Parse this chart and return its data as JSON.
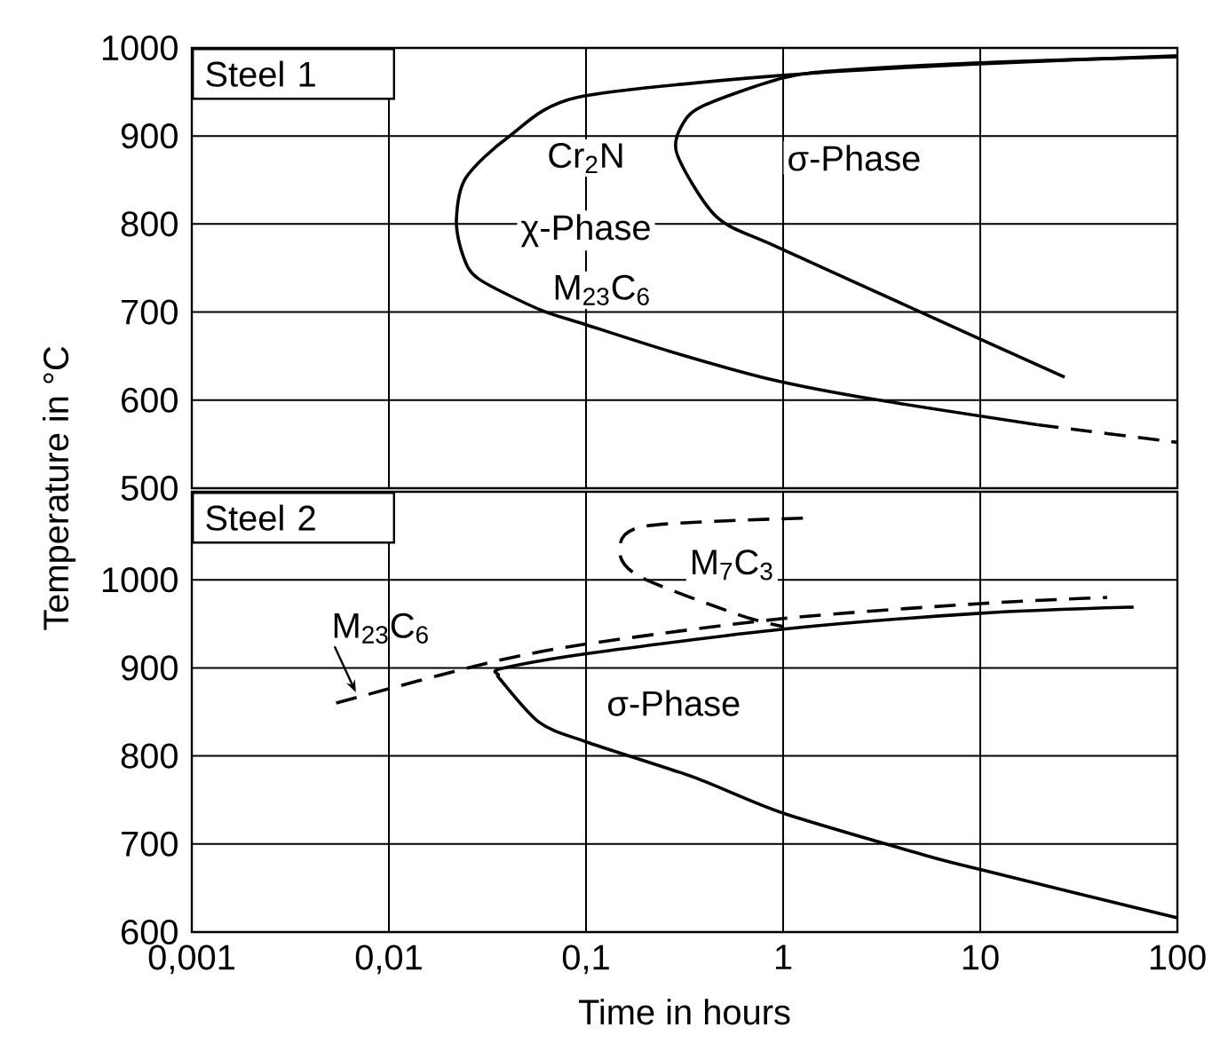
{
  "chart_data": [
    {
      "type": "line",
      "ylabel": "Temperature in °C",
      "log": "x",
      "grid": true,
      "tick_labels": "y",
      "xlim": [
        0.001,
        100
      ],
      "xticks": [
        0.001,
        0.01,
        0.1,
        1,
        10,
        100
      ],
      "ylim": [
        500,
        1000
      ],
      "yticks": [
        500,
        600,
        700,
        800,
        900,
        1000
      ],
      "series": [
        {
          "color": "#000000",
          "line_style": "solid",
          "x": [
            100,
            10,
            1,
            0.091,
            0.041,
            0.0245,
            0.022,
            0.0237,
            0.0284,
            0.058,
            0.099,
            0.27,
            0.85,
            2.7,
            19.5
          ],
          "values": [
            991,
            982,
            969,
            944,
            900,
            852,
            804,
            765,
            738,
            703,
            686,
            655,
            624,
            602,
            572
          ]
        },
        {
          "color": "#000000",
          "line_style": "dashed",
          "x": [
            19.5,
            100
          ],
          "values": [
            572,
            552
          ]
        },
        {
          "color": "#000000",
          "line_style": "solid",
          "x": [
            100,
            12.6,
            2.1,
            1,
            0.4,
            0.31,
            0.29,
            0.46,
            0.93,
            5.1,
            26.8
          ],
          "values": [
            990,
            984,
            975,
            966,
            935,
            914,
            879,
            808,
            774,
            699,
            626
          ]
        }
      ],
      "annotations": [
        "Steel 1",
        "Cr$_{2}$N",
        "χ-Phase",
        "M$_{23}$C$_{6}$",
        "σ-Phase"
      ]
    },
    {
      "type": "line",
      "xlabel": "Time in hours",
      "log": "x",
      "grid": true,
      "xlim": [
        0.001,
        100
      ],
      "xticks": [
        {
          "value": 0.001,
          "label": "0,001"
        },
        {
          "value": 0.01,
          "label": "0,01"
        },
        {
          "value": 0.1,
          "label": "0,1"
        },
        {
          "value": 1,
          "label": "1"
        },
        {
          "value": 10,
          "label": "10"
        },
        {
          "value": 100,
          "label": "100"
        }
      ],
      "ylim": [
        600,
        1100
      ],
      "yticks": [
        600,
        700,
        800,
        900,
        1000
      ],
      "series": [
        {
          "color": "#000000",
          "line_style": "solid",
          "x": [
            60,
            10,
            1,
            0.1,
            0.037,
            0.036,
            0.037,
            0.058,
            0.1,
            0.35,
            1,
            5.1,
            10,
            100
          ],
          "values": [
            969,
            962,
            944,
            916,
            899,
            892,
            886,
            838,
            816,
            776,
            735,
            688,
            671,
            616
          ]
        },
        {
          "color": "#000000",
          "line_style": "dashed",
          "x": [
            0.0054,
            0.031,
            0.1,
            1,
            10,
            44
          ],
          "values": [
            860,
            905,
            927,
            956,
            973,
            980
          ]
        },
        {
          "color": "#000000",
          "line_style": "dashed",
          "x": [
            1.26,
            0.2,
            0.148,
            0.186,
            0.6,
            1
          ],
          "values": [
            1070,
            1061,
            1035,
            1004,
            960,
            947
          ]
        }
      ],
      "annotations": [
        "Steel 2",
        "M$_{7}$C$_{3}$",
        "σ-Phase",
        {
          "text": "M$_{23}$C$_{6}$",
          "x": 0.0068,
          "y": 872
        }
      ]
    }
  ]
}
